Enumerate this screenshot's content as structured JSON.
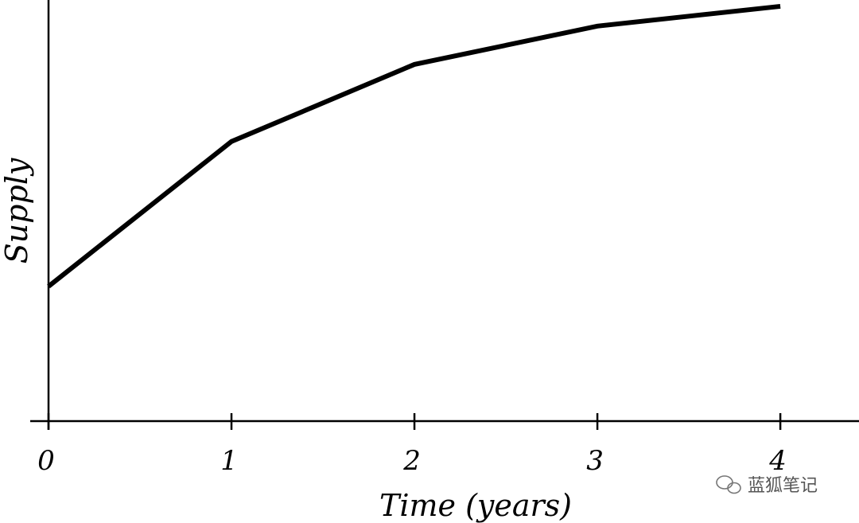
{
  "chart_data": {
    "type": "line",
    "x_label": "Time (years)",
    "y_label": "Supply",
    "x": [
      0,
      1,
      2,
      3,
      4
    ],
    "series": [
      {
        "name": "Supply",
        "color": "#000000",
        "values": [
          32,
          66.4,
          84.7,
          93.8,
          98.5
        ]
      }
    ],
    "xlim": [
      -0.1,
      4.43
    ],
    "xticks": [
      0,
      1,
      2,
      3,
      4
    ],
    "ylim": [
      0,
      100
    ],
    "grid": false,
    "annotations": [
      "蓝狐笔记"
    ]
  }
}
